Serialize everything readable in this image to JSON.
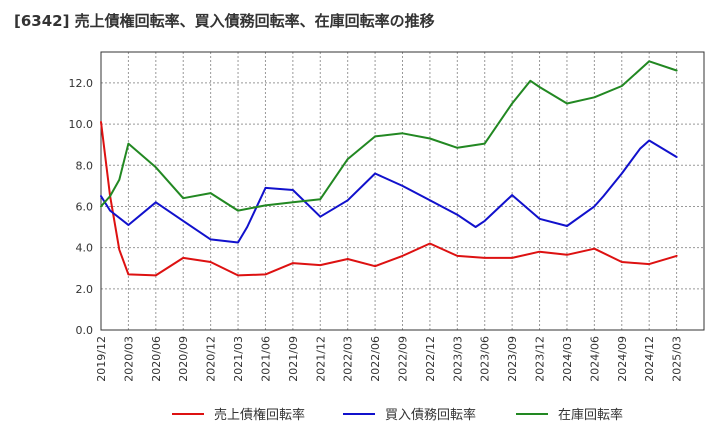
{
  "chart_data": {
    "type": "line",
    "title": "[6342]  売上債権回転率、買入債務回転率、在庫回転率の推移",
    "xlabel": "",
    "ylabel": "",
    "ylim": [
      0,
      13.5
    ],
    "yticks": [
      0.0,
      2.0,
      4.0,
      6.0,
      8.0,
      10.0,
      12.0
    ],
    "ytick_labels": [
      "0.0",
      "2.0",
      "4.0",
      "6.0",
      "8.0",
      "10.0",
      "12.0"
    ],
    "x_range": [
      0,
      66
    ],
    "xticks": [
      "2019/12",
      "2020/03",
      "2020/06",
      "2020/09",
      "2020/12",
      "2021/03",
      "2021/06",
      "2021/09",
      "2021/12",
      "2022/03",
      "2022/06",
      "2022/09",
      "2022/12",
      "2023/03",
      "2023/06",
      "2023/09",
      "2023/12",
      "2024/03",
      "2024/06",
      "2024/09",
      "2024/12",
      "2025/03"
    ],
    "grid": true,
    "legend_position": "bottom",
    "series": [
      {
        "name": "売上債権回転率",
        "color": "#dd1111",
        "x": [
          0,
          1,
          2,
          3,
          6,
          9,
          12,
          15,
          18,
          21,
          24,
          27,
          30,
          33,
          36,
          37,
          39,
          42,
          45,
          48,
          51,
          54,
          57,
          60,
          63
        ],
        "values": [
          10.1,
          6.5,
          3.9,
          2.7,
          2.65,
          3.5,
          3.3,
          2.65,
          2.7,
          3.25,
          3.15,
          3.45,
          3.1,
          3.6,
          4.2,
          4.0,
          3.6,
          3.5,
          3.5,
          3.8,
          3.65,
          3.95,
          3.3,
          3.2,
          3.6
        ]
      },
      {
        "name": "買入債務回転率",
        "color": "#1111cc",
        "x": [
          0,
          1,
          3,
          6,
          9,
          12,
          15,
          16,
          18,
          21,
          24,
          27,
          30,
          33,
          36,
          39,
          41,
          42,
          45,
          48,
          51,
          54,
          55,
          57,
          59,
          60,
          63
        ],
        "values": [
          6.5,
          5.8,
          5.1,
          6.2,
          5.3,
          4.4,
          4.25,
          5.0,
          6.9,
          6.8,
          5.5,
          6.3,
          7.6,
          7.0,
          6.3,
          5.6,
          5.0,
          5.3,
          6.55,
          5.4,
          5.05,
          6.0,
          6.5,
          7.6,
          8.8,
          9.2,
          8.4
        ]
      },
      {
        "name": "在庫回転率",
        "color": "#228822",
        "x": [
          0,
          1,
          2,
          3,
          6,
          9,
          12,
          15,
          18,
          21,
          24,
          27,
          30,
          33,
          36,
          39,
          42,
          45,
          47,
          48,
          51,
          54,
          57,
          60,
          63
        ],
        "values": [
          6.0,
          6.5,
          7.3,
          9.05,
          7.9,
          6.4,
          6.65,
          5.8,
          6.05,
          6.2,
          6.35,
          8.3,
          9.4,
          9.55,
          9.3,
          8.85,
          9.05,
          11.0,
          12.1,
          11.8,
          11.0,
          11.3,
          11.85,
          13.05,
          12.6
        ]
      }
    ]
  }
}
